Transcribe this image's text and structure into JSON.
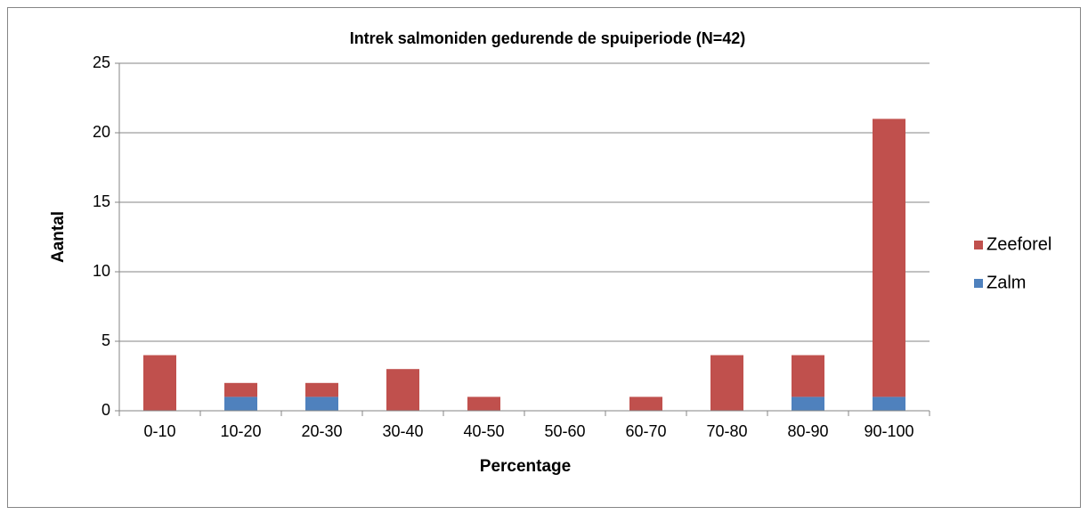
{
  "chart_data": {
    "type": "stacked-bar",
    "title": "Intrek salmoniden gedurende de spuiperiode (N=42)",
    "x_label": "Percentage",
    "y_label": "Aantal",
    "categories": [
      "0-10",
      "10-20",
      "20-30",
      "30-40",
      "40-50",
      "50-60",
      "60-70",
      "70-80",
      "80-90",
      "90-100"
    ],
    "series": [
      {
        "name": "Zalm",
        "color": "#4f81bd",
        "values": [
          0,
          1,
          1,
          0,
          0,
          0,
          0,
          0,
          1,
          1
        ]
      },
      {
        "name": "Zeeforel",
        "color": "#c0504d",
        "values": [
          4,
          1,
          1,
          3,
          1,
          0,
          1,
          4,
          3,
          20
        ]
      }
    ],
    "ylim": [
      0,
      25
    ],
    "yticks": [
      0,
      5,
      10,
      15,
      20,
      25
    ],
    "grid": true,
    "legend": "right"
  }
}
